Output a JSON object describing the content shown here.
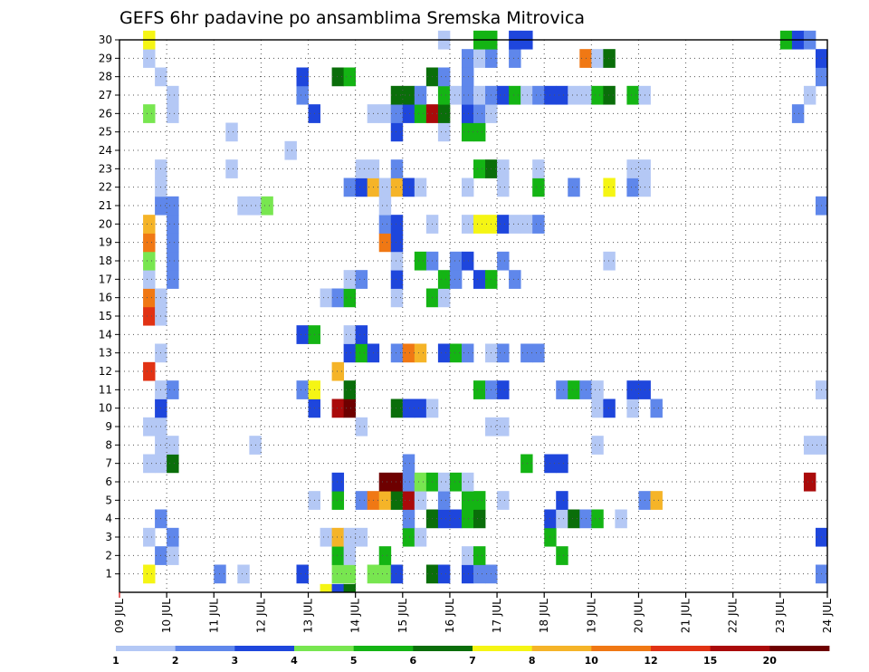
{
  "chart_data": {
    "type": "heatmap",
    "title": "GEFS 6hr padavine po ansamblima Sremska Mitrovica",
    "xlabel": "",
    "ylabel": "",
    "x_tick_labels": [
      "09 JUL",
      "10 JUL",
      "11 JUL",
      "12 JUL",
      "13 JUL",
      "14 JUL",
      "15 JUL",
      "16 JUL",
      "17 JUL",
      "18 JUL",
      "19 JUL",
      "20 JUL",
      "21 JUL",
      "22 JUL",
      "23 JUL",
      "24 JUL"
    ],
    "y_tick_labels": [
      "1",
      "2",
      "3",
      "4",
      "5",
      "6",
      "7",
      "8",
      "9",
      "10",
      "11",
      "12",
      "13",
      "14",
      "15",
      "16",
      "17",
      "18",
      "19",
      "20",
      "21",
      "22",
      "23",
      "24",
      "25",
      "26",
      "27",
      "28",
      "29",
      "30"
    ],
    "ylim": [
      0,
      30
    ],
    "time_steps_per_day": 4,
    "n_time_steps": 60,
    "grid": true,
    "colorbar": {
      "labels": [
        "1",
        "2",
        "3",
        "4",
        "5",
        "6",
        "7",
        "8",
        "10",
        "12",
        "15",
        "20"
      ],
      "colors": [
        "#b4c8f5",
        "#5f87eb",
        "#1e46dc",
        "#78e650",
        "#14b414",
        "#0a6e0a",
        "#f5f514",
        "#f5b428",
        "#f07814",
        "#e13214",
        "#aa0a0a",
        "#6e0000"
      ]
    },
    "cells": [
      [
        1,
        2,
        7
      ],
      [
        1,
        8,
        2
      ],
      [
        1,
        10,
        1
      ],
      [
        1,
        15,
        3
      ],
      [
        1,
        18,
        4
      ],
      [
        1,
        19,
        4
      ],
      [
        1,
        21,
        4
      ],
      [
        1,
        22,
        4
      ],
      [
        1,
        23,
        3
      ],
      [
        1,
        26,
        6
      ],
      [
        1,
        27,
        3
      ],
      [
        1,
        29,
        3
      ],
      [
        1,
        30,
        2
      ],
      [
        1,
        31,
        2
      ],
      [
        1,
        59,
        2
      ],
      [
        2,
        3,
        2
      ],
      [
        2,
        4,
        1
      ],
      [
        2,
        18,
        5
      ],
      [
        2,
        19,
        1
      ],
      [
        2,
        22,
        5
      ],
      [
        2,
        29,
        1
      ],
      [
        2,
        30,
        5
      ],
      [
        2,
        37,
        5
      ],
      [
        3,
        2,
        1
      ],
      [
        3,
        4,
        2
      ],
      [
        3,
        17,
        1
      ],
      [
        3,
        18,
        8
      ],
      [
        3,
        19,
        1
      ],
      [
        3,
        20,
        1
      ],
      [
        3,
        24,
        5
      ],
      [
        3,
        25,
        1
      ],
      [
        3,
        36,
        5
      ],
      [
        3,
        59,
        3
      ],
      [
        4,
        3,
        2
      ],
      [
        4,
        24,
        2
      ],
      [
        4,
        26,
        6
      ],
      [
        4,
        27,
        3
      ],
      [
        4,
        28,
        3
      ],
      [
        4,
        29,
        5
      ],
      [
        4,
        30,
        6
      ],
      [
        4,
        36,
        3
      ],
      [
        4,
        37,
        1
      ],
      [
        4,
        38,
        6
      ],
      [
        4,
        39,
        2
      ],
      [
        4,
        40,
        5
      ],
      [
        4,
        42,
        1
      ],
      [
        5,
        16,
        1
      ],
      [
        5,
        18,
        5
      ],
      [
        5,
        20,
        2
      ],
      [
        5,
        21,
        9
      ],
      [
        5,
        22,
        8
      ],
      [
        5,
        23,
        6
      ],
      [
        5,
        24,
        11
      ],
      [
        5,
        25,
        1
      ],
      [
        5,
        27,
        2
      ],
      [
        5,
        29,
        5
      ],
      [
        5,
        30,
        5
      ],
      [
        5,
        32,
        1
      ],
      [
        5,
        37,
        3
      ],
      [
        5,
        44,
        2
      ],
      [
        5,
        45,
        8
      ],
      [
        6,
        18,
        3
      ],
      [
        6,
        22,
        12
      ],
      [
        6,
        23,
        12
      ],
      [
        6,
        24,
        2
      ],
      [
        6,
        25,
        4
      ],
      [
        6,
        26,
        5
      ],
      [
        6,
        27,
        1
      ],
      [
        6,
        28,
        5
      ],
      [
        6,
        29,
        1
      ],
      [
        6,
        58,
        11
      ],
      [
        7,
        2,
        1
      ],
      [
        7,
        3,
        1
      ],
      [
        7,
        4,
        6
      ],
      [
        7,
        24,
        2
      ],
      [
        7,
        34,
        5
      ],
      [
        7,
        36,
        3
      ],
      [
        7,
        37,
        3
      ],
      [
        8,
        3,
        1
      ],
      [
        8,
        4,
        1
      ],
      [
        8,
        11,
        1
      ],
      [
        8,
        40,
        1
      ],
      [
        8,
        58,
        1
      ],
      [
        8,
        59,
        1
      ],
      [
        9,
        2,
        1
      ],
      [
        9,
        3,
        1
      ],
      [
        9,
        20,
        1
      ],
      [
        9,
        31,
        1
      ],
      [
        9,
        32,
        1
      ],
      [
        10,
        3,
        3
      ],
      [
        10,
        16,
        3
      ],
      [
        10,
        18,
        11
      ],
      [
        10,
        19,
        12
      ],
      [
        10,
        23,
        6
      ],
      [
        10,
        24,
        3
      ],
      [
        10,
        25,
        3
      ],
      [
        10,
        26,
        1
      ],
      [
        10,
        40,
        1
      ],
      [
        10,
        41,
        3
      ],
      [
        10,
        43,
        1
      ],
      [
        10,
        45,
        2
      ],
      [
        11,
        3,
        1
      ],
      [
        11,
        4,
        2
      ],
      [
        11,
        15,
        2
      ],
      [
        11,
        16,
        7
      ],
      [
        11,
        19,
        6
      ],
      [
        11,
        30,
        5
      ],
      [
        11,
        31,
        2
      ],
      [
        11,
        32,
        3
      ],
      [
        11,
        37,
        2
      ],
      [
        11,
        38,
        5
      ],
      [
        11,
        39,
        2
      ],
      [
        11,
        40,
        1
      ],
      [
        11,
        43,
        3
      ],
      [
        11,
        44,
        3
      ],
      [
        11,
        59,
        1
      ],
      [
        12,
        2,
        10
      ],
      [
        12,
        18,
        8
      ],
      [
        13,
        3,
        1
      ],
      [
        13,
        19,
        3
      ],
      [
        13,
        20,
        5
      ],
      [
        13,
        21,
        3
      ],
      [
        13,
        23,
        2
      ],
      [
        13,
        24,
        9
      ],
      [
        13,
        25,
        8
      ],
      [
        13,
        27,
        3
      ],
      [
        13,
        28,
        5
      ],
      [
        13,
        29,
        2
      ],
      [
        13,
        31,
        1
      ],
      [
        13,
        32,
        2
      ],
      [
        13,
        34,
        2
      ],
      [
        13,
        35,
        2
      ],
      [
        14,
        15,
        3
      ],
      [
        14,
        16,
        5
      ],
      [
        14,
        19,
        1
      ],
      [
        14,
        20,
        3
      ],
      [
        15,
        2,
        10
      ],
      [
        15,
        3,
        1
      ],
      [
        16,
        2,
        9
      ],
      [
        16,
        3,
        1
      ],
      [
        16,
        17,
        1
      ],
      [
        16,
        18,
        2
      ],
      [
        16,
        19,
        5
      ],
      [
        16,
        23,
        1
      ],
      [
        16,
        26,
        5
      ],
      [
        16,
        27,
        1
      ],
      [
        17,
        2,
        1
      ],
      [
        17,
        4,
        2
      ],
      [
        17,
        19,
        1
      ],
      [
        17,
        20,
        2
      ],
      [
        17,
        23,
        3
      ],
      [
        17,
        27,
        5
      ],
      [
        17,
        28,
        2
      ],
      [
        17,
        30,
        3
      ],
      [
        17,
        31,
        5
      ],
      [
        17,
        33,
        2
      ],
      [
        18,
        2,
        4
      ],
      [
        18,
        4,
        2
      ],
      [
        18,
        23,
        1
      ],
      [
        18,
        25,
        5
      ],
      [
        18,
        26,
        2
      ],
      [
        18,
        28,
        2
      ],
      [
        18,
        29,
        3
      ],
      [
        18,
        32,
        2
      ],
      [
        18,
        41,
        1
      ],
      [
        19,
        2,
        9
      ],
      [
        19,
        4,
        2
      ],
      [
        19,
        22,
        9
      ],
      [
        19,
        23,
        3
      ],
      [
        20,
        2,
        8
      ],
      [
        20,
        4,
        2
      ],
      [
        20,
        22,
        2
      ],
      [
        20,
        23,
        3
      ],
      [
        20,
        26,
        1
      ],
      [
        20,
        29,
        1
      ],
      [
        20,
        30,
        7
      ],
      [
        20,
        31,
        7
      ],
      [
        20,
        32,
        3
      ],
      [
        20,
        33,
        1
      ],
      [
        20,
        34,
        1
      ],
      [
        20,
        35,
        2
      ],
      [
        21,
        3,
        2
      ],
      [
        21,
        4,
        2
      ],
      [
        21,
        10,
        1
      ],
      [
        21,
        11,
        1
      ],
      [
        21,
        12,
        4
      ],
      [
        21,
        22,
        1
      ],
      [
        21,
        59,
        2
      ],
      [
        22,
        3,
        1
      ],
      [
        22,
        19,
        2
      ],
      [
        22,
        20,
        3
      ],
      [
        22,
        21,
        8
      ],
      [
        22,
        22,
        1
      ],
      [
        22,
        23,
        8
      ],
      [
        22,
        24,
        3
      ],
      [
        22,
        25,
        1
      ],
      [
        22,
        29,
        1
      ],
      [
        22,
        32,
        1
      ],
      [
        22,
        35,
        5
      ],
      [
        22,
        38,
        2
      ],
      [
        22,
        41,
        7
      ],
      [
        22,
        43,
        2
      ],
      [
        22,
        44,
        1
      ],
      [
        23,
        3,
        1
      ],
      [
        23,
        9,
        1
      ],
      [
        23,
        20,
        1
      ],
      [
        23,
        21,
        1
      ],
      [
        23,
        23,
        2
      ],
      [
        23,
        30,
        5
      ],
      [
        23,
        31,
        6
      ],
      [
        23,
        32,
        1
      ],
      [
        23,
        35,
        1
      ],
      [
        23,
        43,
        1
      ],
      [
        23,
        44,
        1
      ],
      [
        24,
        14,
        1
      ],
      [
        25,
        9,
        1
      ],
      [
        25,
        23,
        3
      ],
      [
        25,
        27,
        1
      ],
      [
        25,
        29,
        5
      ],
      [
        25,
        30,
        5
      ],
      [
        26,
        2,
        4
      ],
      [
        26,
        4,
        1
      ],
      [
        26,
        16,
        3
      ],
      [
        26,
        21,
        1
      ],
      [
        26,
        22,
        1
      ],
      [
        26,
        23,
        2
      ],
      [
        26,
        24,
        3
      ],
      [
        26,
        25,
        5
      ],
      [
        26,
        26,
        11
      ],
      [
        26,
        27,
        6
      ],
      [
        26,
        29,
        3
      ],
      [
        26,
        30,
        2
      ],
      [
        26,
        31,
        1
      ],
      [
        26,
        57,
        2
      ],
      [
        27,
        4,
        1
      ],
      [
        27,
        15,
        2
      ],
      [
        27,
        23,
        6
      ],
      [
        27,
        24,
        6
      ],
      [
        27,
        25,
        2
      ],
      [
        27,
        27,
        5
      ],
      [
        27,
        28,
        1
      ],
      [
        27,
        29,
        2
      ],
      [
        27,
        30,
        1
      ],
      [
        27,
        31,
        2
      ],
      [
        27,
        32,
        3
      ],
      [
        27,
        33,
        5
      ],
      [
        27,
        34,
        1
      ],
      [
        27,
        35,
        2
      ],
      [
        27,
        36,
        3
      ],
      [
        27,
        37,
        3
      ],
      [
        27,
        38,
        1
      ],
      [
        27,
        39,
        1
      ],
      [
        27,
        40,
        5
      ],
      [
        27,
        41,
        6
      ],
      [
        27,
        43,
        5
      ],
      [
        27,
        44,
        1
      ],
      [
        27,
        58,
        1
      ],
      [
        28,
        3,
        1
      ],
      [
        28,
        15,
        3
      ],
      [
        28,
        18,
        6
      ],
      [
        28,
        19,
        5
      ],
      [
        28,
        26,
        6
      ],
      [
        28,
        27,
        2
      ],
      [
        28,
        29,
        2
      ],
      [
        28,
        59,
        2
      ],
      [
        29,
        2,
        1
      ],
      [
        29,
        29,
        2
      ],
      [
        29,
        30,
        1
      ],
      [
        29,
        31,
        2
      ],
      [
        29,
        33,
        2
      ],
      [
        29,
        39,
        9
      ],
      [
        29,
        40,
        1
      ],
      [
        29,
        41,
        6
      ],
      [
        29,
        59,
        3
      ],
      [
        30,
        2,
        7
      ],
      [
        30,
        27,
        1
      ],
      [
        30,
        30,
        5
      ],
      [
        30,
        31,
        5
      ],
      [
        30,
        33,
        3
      ],
      [
        30,
        34,
        3
      ],
      [
        30,
        56,
        5
      ],
      [
        30,
        57,
        3
      ],
      [
        30,
        58,
        2
      ]
    ],
    "bottom_row_cells": [
      [
        17,
        7
      ],
      [
        18,
        3
      ],
      [
        19,
        6
      ]
    ]
  }
}
